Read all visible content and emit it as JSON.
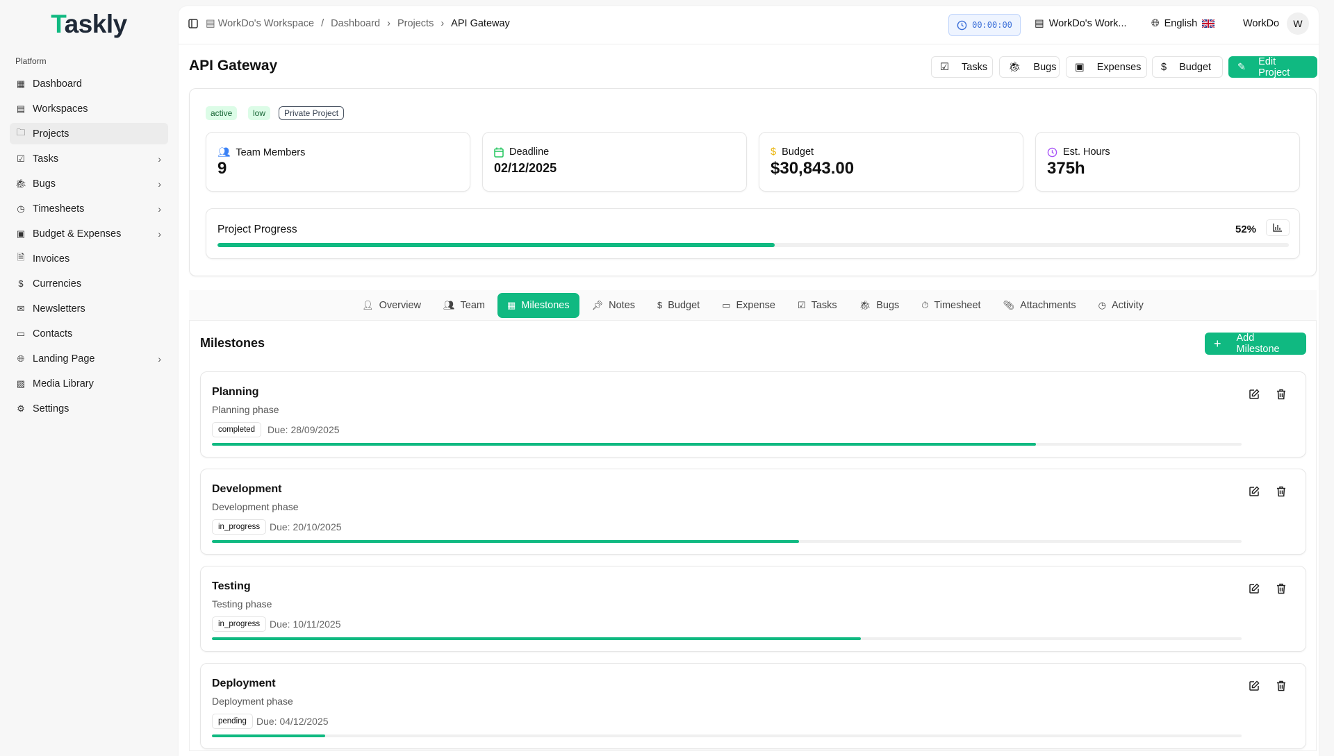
{
  "app": {
    "logo_first": "T",
    "logo_rest": "askly"
  },
  "sidebar": {
    "section": "Platform",
    "items": [
      {
        "label": "Dashboard",
        "icon": "grid-icon"
      },
      {
        "label": "Workspaces",
        "icon": "building-icon"
      },
      {
        "label": "Projects",
        "icon": "folder-icon",
        "active": true
      },
      {
        "label": "Tasks",
        "icon": "check-square-icon",
        "chevron": true
      },
      {
        "label": "Bugs",
        "icon": "bug-icon",
        "chevron": true
      },
      {
        "label": "Timesheets",
        "icon": "clock-icon",
        "chevron": true
      },
      {
        "label": "Budget & Expenses",
        "icon": "receipt-icon",
        "chevron": true
      },
      {
        "label": "Invoices",
        "icon": "file-icon"
      },
      {
        "label": "Currencies",
        "icon": "dollar-icon"
      },
      {
        "label": "Newsletters",
        "icon": "mail-icon"
      },
      {
        "label": "Contacts",
        "icon": "message-icon"
      },
      {
        "label": "Landing Page",
        "icon": "globe-icon",
        "chevron": true
      },
      {
        "label": "Media Library",
        "icon": "image-icon"
      },
      {
        "label": "Settings",
        "icon": "gear-icon"
      }
    ]
  },
  "header": {
    "breadcrumb": [
      "WorkDo's Workspace",
      "Dashboard",
      "Projects",
      "API Gateway"
    ],
    "separators": [
      "/",
      "›",
      "›"
    ],
    "timer": "00:00:00",
    "workspace": "WorkDo's Work...",
    "language": "English",
    "user": "WorkDo",
    "avatar": "W"
  },
  "page": {
    "title": "API Gateway",
    "buttons": [
      "Tasks",
      "Bugs",
      "Expenses",
      "Budget",
      "Edit Project"
    ]
  },
  "project": {
    "badges": [
      "active",
      "low",
      "Private Project"
    ],
    "stats": [
      {
        "label": "Team Members",
        "value": "9"
      },
      {
        "label": "Deadline",
        "value": "02/12/2025"
      },
      {
        "label": "Budget",
        "value": "$30,843.00"
      },
      {
        "label": "Est. Hours",
        "value": "375h"
      }
    ],
    "progress_label": "Project Progress",
    "progress_text": "52%",
    "progress": 52
  },
  "tabs": [
    "Overview",
    "Team",
    "Milestones",
    "Notes",
    "Budget",
    "Expense",
    "Tasks",
    "Bugs",
    "Timesheet",
    "Attachments",
    "Activity"
  ],
  "active_tab": "Milestones",
  "milestones": {
    "heading": "Milestones",
    "add_label": "Add Milestone",
    "items": [
      {
        "name": "Planning",
        "desc": "Planning phase",
        "status": "completed",
        "due": "Due: 28/09/2025",
        "progress": 80
      },
      {
        "name": "Development",
        "desc": "Development phase",
        "status": "in_progress",
        "due": "Due: 20/10/2025",
        "progress": 57
      },
      {
        "name": "Testing",
        "desc": "Testing phase",
        "status": "in_progress",
        "due": "Due: 10/11/2025",
        "progress": 63
      },
      {
        "name": "Deployment",
        "desc": "Deployment phase",
        "status": "pending",
        "due": "Due: 04/12/2025",
        "progress": 11
      }
    ]
  },
  "colors": {
    "accent": "#10b981",
    "timer": "#3b6fd8"
  }
}
